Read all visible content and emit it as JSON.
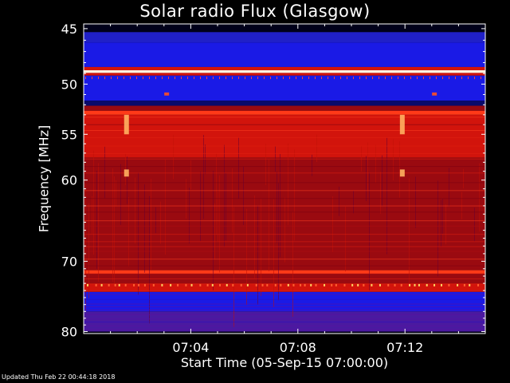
{
  "chart_data": {
    "type": "heatmap",
    "title": "Solar radio Flux (Glasgow)",
    "xlabel": "Start Time (05-Sep-15 07:00:00)",
    "ylabel": "Frequency [MHz]",
    "footer": "Updated Thu Feb 22 00:44:18 2018",
    "x_ticks": [
      {
        "label": "07:04",
        "minutes": 4
      },
      {
        "label": "07:08",
        "minutes": 8
      },
      {
        "label": "07:12",
        "minutes": 12
      }
    ],
    "xlim_minutes": [
      0,
      15
    ],
    "y_ticks": [
      45,
      50,
      55,
      60,
      70,
      80
    ],
    "ylim_mhz": [
      45,
      80
    ],
    "yscale": "log",
    "y_inverted": true,
    "colormap": "blue-red-white",
    "frequency_bands": [
      {
        "from": 44.6,
        "to": 45.3,
        "intensity": "black"
      },
      {
        "from": 45.3,
        "to": 46.2,
        "intensity": "mid-blue"
      },
      {
        "from": 46.2,
        "to": 48.4,
        "intensity": "blue"
      },
      {
        "from": 48.4,
        "to": 48.7,
        "intensity": "red"
      },
      {
        "from": 48.7,
        "to": 48.95,
        "intensity": "white"
      },
      {
        "from": 48.95,
        "to": 49.2,
        "intensity": "red"
      },
      {
        "from": 49.2,
        "to": 51.6,
        "intensity": "blue"
      },
      {
        "from": 51.6,
        "to": 52.1,
        "intensity": "dark-blue"
      },
      {
        "from": 52.1,
        "to": 52.6,
        "intensity": "dark-red"
      },
      {
        "from": 52.6,
        "to": 53.0,
        "intensity": "bright-red"
      },
      {
        "from": 53.0,
        "to": 57.5,
        "intensity": "red"
      },
      {
        "from": 57.5,
        "to": 71.2,
        "intensity": "dark-red"
      },
      {
        "from": 71.2,
        "to": 71.7,
        "intensity": "bright-red"
      },
      {
        "from": 71.7,
        "to": 73.0,
        "intensity": "dark-red"
      },
      {
        "from": 73.0,
        "to": 74.2,
        "intensity": "red"
      },
      {
        "from": 74.2,
        "to": 77.0,
        "intensity": "blue"
      },
      {
        "from": 77.0,
        "to": 80.0,
        "intensity": "purple"
      }
    ],
    "bursts": [
      {
        "minute": 1.6,
        "from": 53.0,
        "to": 55.0
      },
      {
        "minute": 1.6,
        "from": 58.8,
        "to": 59.6
      },
      {
        "minute": 11.9,
        "from": 53.0,
        "to": 55.0
      },
      {
        "minute": 11.9,
        "from": 58.8,
        "to": 59.6
      },
      {
        "minute": 3.1,
        "from": 50.8,
        "to": 51.1
      },
      {
        "minute": 13.1,
        "from": 50.8,
        "to": 51.1
      }
    ]
  },
  "colors": {
    "background": "#000000",
    "frame": "#ffffff",
    "text": "#ffffff"
  }
}
